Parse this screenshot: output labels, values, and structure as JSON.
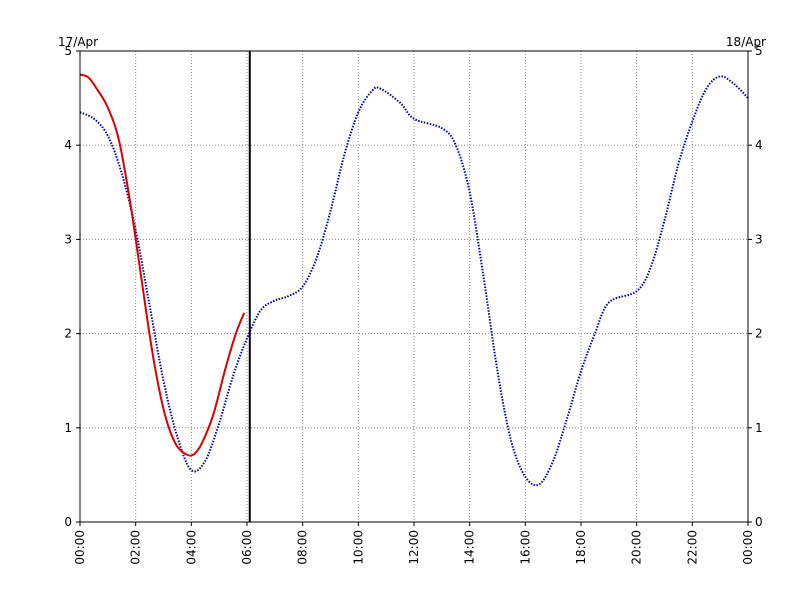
{
  "chart_data": {
    "type": "line",
    "date_left": "17/Apr",
    "date_right": "18/Apr",
    "xlim": [
      0,
      24
    ],
    "ylim": [
      0,
      5
    ],
    "x_ticks": [
      "00:00",
      "02:00",
      "04:00",
      "06:00",
      "08:00",
      "10:00",
      "12:00",
      "14:00",
      "16:00",
      "18:00",
      "20:00",
      "22:00",
      "00:00"
    ],
    "y_ticks": [
      "0",
      "1",
      "2",
      "3",
      "4",
      "5"
    ],
    "grid": true,
    "current_time_marker": 6.1,
    "series": [
      {
        "color": "#0000aa",
        "style": "dotted",
        "x": [
          0,
          0.5,
          1,
          1.5,
          2,
          2.5,
          3,
          3.5,
          4,
          4.5,
          5,
          5.5,
          6,
          6.5,
          7,
          7.5,
          8,
          8.5,
          9,
          9.5,
          10,
          10.5,
          10.8,
          11.5,
          12,
          13,
          13.5,
          14,
          14.5,
          15,
          15.5,
          16,
          16.5,
          17,
          17.5,
          18,
          18.5,
          19,
          20,
          20.5,
          21,
          21.5,
          22,
          22.5,
          23,
          23.5,
          24
        ],
        "y": [
          4.35,
          4.28,
          4.1,
          3.7,
          3.1,
          2.3,
          1.5,
          0.9,
          0.55,
          0.65,
          1.05,
          1.55,
          1.95,
          2.25,
          2.35,
          2.4,
          2.5,
          2.8,
          3.3,
          3.9,
          4.35,
          4.58,
          4.6,
          4.45,
          4.28,
          4.18,
          4.0,
          3.5,
          2.6,
          1.6,
          0.85,
          0.48,
          0.4,
          0.65,
          1.1,
          1.6,
          2.0,
          2.33,
          2.45,
          2.7,
          3.2,
          3.8,
          4.25,
          4.6,
          4.73,
          4.65,
          4.5
        ]
      },
      {
        "color": "#dd0000",
        "style": "solid",
        "x": [
          0,
          0.3,
          0.6,
          1,
          1.4,
          1.8,
          2.2,
          2.6,
          3,
          3.4,
          3.8,
          4.1,
          4.4,
          4.8,
          5.2,
          5.6,
          5.9
        ],
        "y": [
          4.75,
          4.72,
          4.6,
          4.4,
          4.05,
          3.4,
          2.6,
          1.8,
          1.2,
          0.85,
          0.72,
          0.72,
          0.85,
          1.15,
          1.6,
          2.0,
          2.22
        ]
      }
    ]
  }
}
